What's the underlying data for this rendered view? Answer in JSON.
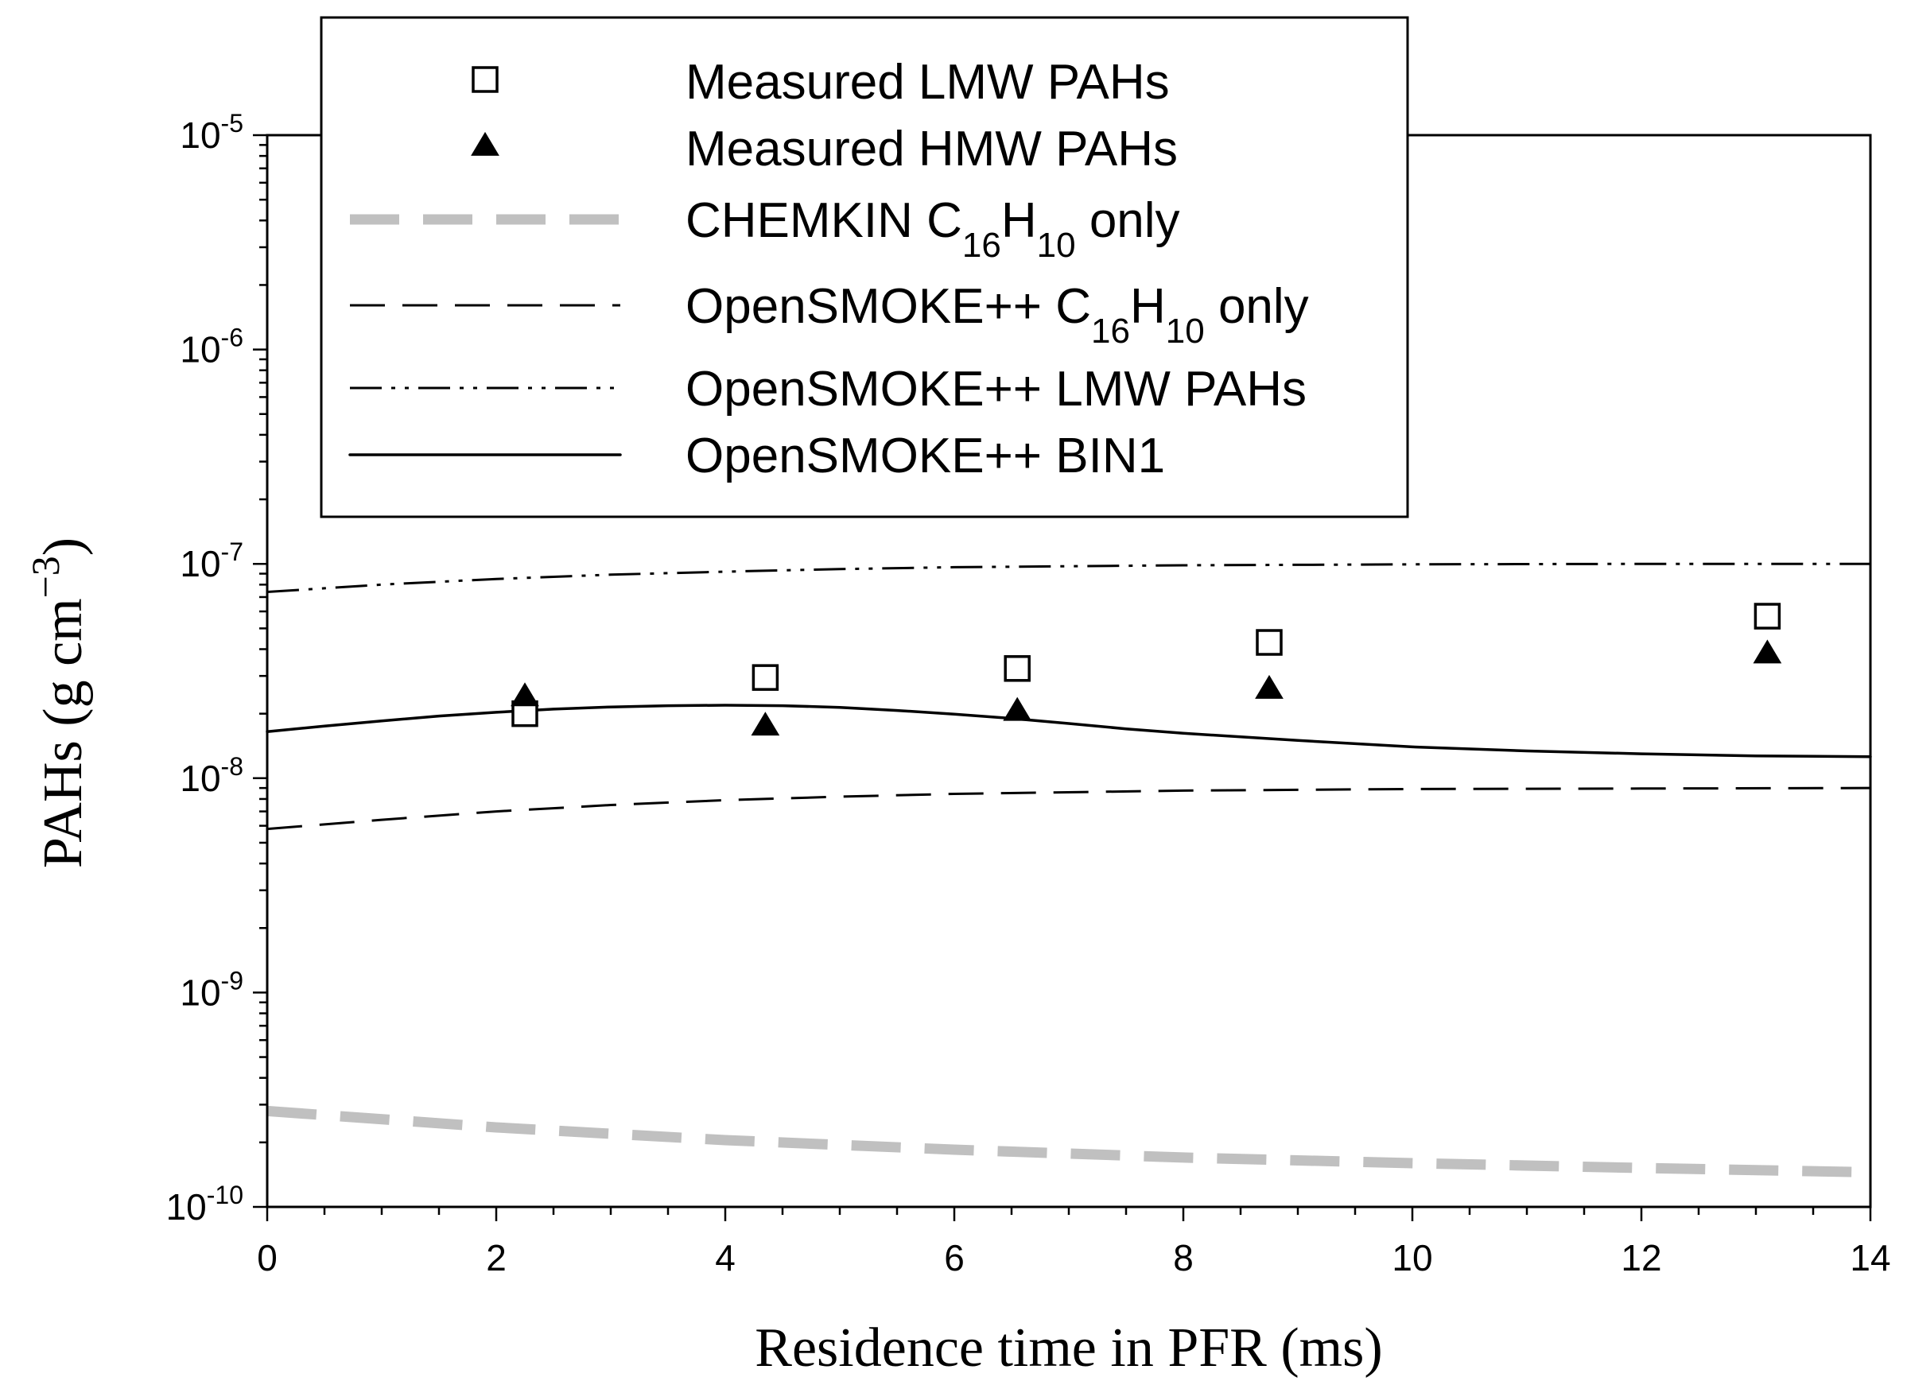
{
  "chart_data": {
    "type": "scatter",
    "xlabel": "Residence time in PFR (ms)",
    "ylabel": "PAHs (g cm",
    "ylabel_sup": "−3",
    "ylabel_close": ")",
    "x_range": [
      0,
      14
    ],
    "y_range": [
      1e-10,
      1e-05
    ],
    "y_scale": "log",
    "x_ticks": [
      "0",
      "2",
      "4",
      "6",
      "8",
      "10",
      "12",
      "14"
    ],
    "y_ticks": [
      {
        "base": "10",
        "exp": "-10",
        "value": 1e-10
      },
      {
        "base": "10",
        "exp": "-9",
        "value": 1e-09
      },
      {
        "base": "10",
        "exp": "-8",
        "value": 1e-08
      },
      {
        "base": "10",
        "exp": "-7",
        "value": 1e-07
      },
      {
        "base": "10",
        "exp": "-6",
        "value": 1e-06
      },
      {
        "base": "10",
        "exp": "-5",
        "value": 1e-05
      }
    ],
    "grid": false,
    "legend_position": "top",
    "series": [
      {
        "name": "Measured LMW PAHs",
        "kind": "marker",
        "marker": "open-square",
        "color": "#000000",
        "points": [
          [
            2.25,
            2e-08
          ],
          [
            4.35,
            2.95e-08
          ],
          [
            6.55,
            3.25e-08
          ],
          [
            8.75,
            4.3e-08
          ],
          [
            13.1,
            5.7e-08
          ]
        ]
      },
      {
        "name": "Measured HMW PAHs",
        "kind": "marker",
        "marker": "filled-triangle",
        "color": "#000000",
        "points": [
          [
            2.25,
            2.4e-08
          ],
          [
            4.35,
            1.75e-08
          ],
          [
            6.55,
            2.05e-08
          ],
          [
            8.75,
            2.6e-08
          ],
          [
            13.1,
            3.8e-08
          ]
        ]
      },
      {
        "name": "CHEMKIN C16H10 only",
        "name_parts": [
          {
            "t": "CHEMKIN C"
          },
          {
            "t": "16",
            "sub": true
          },
          {
            "t": "H"
          },
          {
            "t": "10",
            "sub": true
          },
          {
            "t": " only"
          }
        ],
        "kind": "line",
        "style": "thick-dash",
        "color": "#c0c0c0",
        "points": [
          [
            0,
            2.8e-10
          ],
          [
            2,
            2.35e-10
          ],
          [
            4,
            2.05e-10
          ],
          [
            6,
            1.85e-10
          ],
          [
            8,
            1.7e-10
          ],
          [
            10,
            1.6e-10
          ],
          [
            12,
            1.52e-10
          ],
          [
            14,
            1.45e-10
          ]
        ]
      },
      {
        "name": "OpenSMOKE++ C16H10 only",
        "name_parts": [
          {
            "t": "OpenSMOKE++ C"
          },
          {
            "t": "16",
            "sub": true
          },
          {
            "t": "H"
          },
          {
            "t": "10",
            "sub": true
          },
          {
            "t": " only"
          }
        ],
        "kind": "line",
        "style": "dash",
        "color": "#000000",
        "points": [
          [
            0,
            5.8e-09
          ],
          [
            1,
            6.4e-09
          ],
          [
            2,
            7e-09
          ],
          [
            3,
            7.5e-09
          ],
          [
            4,
            7.9e-09
          ],
          [
            5,
            8.2e-09
          ],
          [
            6,
            8.45e-09
          ],
          [
            8,
            8.75e-09
          ],
          [
            10,
            8.9e-09
          ],
          [
            12,
            8.95e-09
          ],
          [
            14,
            9e-09
          ]
        ]
      },
      {
        "name": "OpenSMOKE++ LMW PAHs",
        "kind": "line",
        "style": "dash-dot-dot",
        "color": "#000000",
        "points": [
          [
            0,
            7.4e-08
          ],
          [
            1,
            8e-08
          ],
          [
            2,
            8.5e-08
          ],
          [
            3,
            8.9e-08
          ],
          [
            4,
            9.2e-08
          ],
          [
            5,
            9.45e-08
          ],
          [
            6,
            9.65e-08
          ],
          [
            8,
            9.85e-08
          ],
          [
            10,
            9.95e-08
          ],
          [
            12,
            1e-07
          ],
          [
            14,
            1e-07
          ]
        ]
      },
      {
        "name": "OpenSMOKE++ BIN1",
        "kind": "line",
        "style": "solid",
        "color": "#000000",
        "points": [
          [
            0,
            1.65e-08
          ],
          [
            0.5,
            1.75e-08
          ],
          [
            1,
            1.85e-08
          ],
          [
            1.5,
            1.95e-08
          ],
          [
            2,
            2.03e-08
          ],
          [
            2.5,
            2.1e-08
          ],
          [
            3,
            2.15e-08
          ],
          [
            3.5,
            2.18e-08
          ],
          [
            4,
            2.19e-08
          ],
          [
            4.5,
            2.18e-08
          ],
          [
            5,
            2.14e-08
          ],
          [
            5.5,
            2.07e-08
          ],
          [
            6,
            1.99e-08
          ],
          [
            6.5,
            1.9e-08
          ],
          [
            7,
            1.8e-08
          ],
          [
            7.5,
            1.7e-08
          ],
          [
            8,
            1.62e-08
          ],
          [
            9,
            1.5e-08
          ],
          [
            10,
            1.4e-08
          ],
          [
            11,
            1.34e-08
          ],
          [
            12,
            1.3e-08
          ],
          [
            13,
            1.27e-08
          ],
          [
            14,
            1.26e-08
          ]
        ]
      }
    ]
  }
}
